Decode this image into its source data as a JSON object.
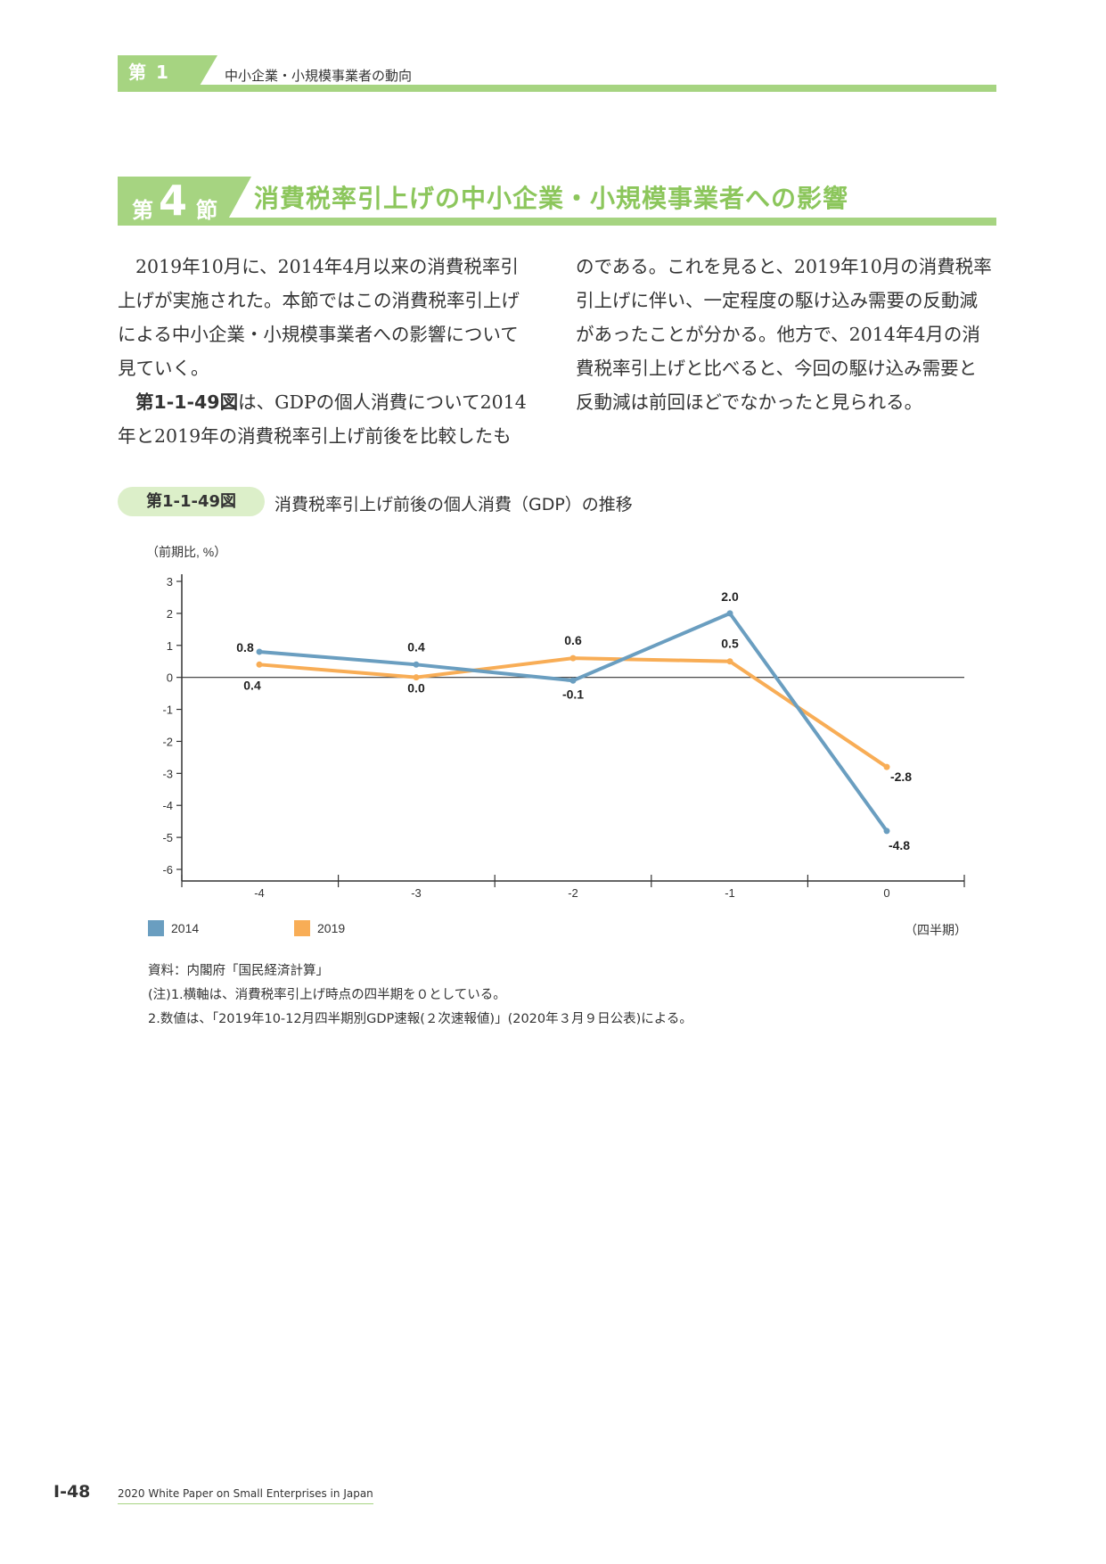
{
  "chapter": {
    "label": "第 1 章",
    "title": "中小企業・小規模事業者の動向"
  },
  "section": {
    "prefix": "第",
    "number": "4",
    "suffix": "節",
    "title": "消費税率引上げの中小企業・小規模事業者への影響"
  },
  "body": {
    "left_p1": "2019年10月に、2014年4月以来の消費税率引上げが実施された。本節ではこの消費税率引上げによる中小企業・小規模事業者への影響について見ていく。",
    "left_p2_ref": "第1-1-49図",
    "left_p2_rest": "は、GDPの個人消費について2014年と2019年の消費税率引上げ前後を比較したも",
    "right_p1": "のである。これを見ると、2019年10月の消費税率引上げに伴い、一定程度の駆け込み需要の反動減があったことが分かる。他方で、2014年4月の消費税率引上げと比べると、今回の駆け込み需要と反動減は前回ほどでなかったと見られる。"
  },
  "figure": {
    "number": "第1-1-49図",
    "title": "消費税率引上げ前後の個人消費（GDP）の推移"
  },
  "chart_data": {
    "type": "line",
    "ylabel": "（前期比, %）",
    "xlabel": "（四半期）",
    "x": [
      -4,
      -3,
      -2,
      -1,
      0
    ],
    "x_tick_labels": [
      "-4",
      "-3",
      "-2",
      "-1",
      "0"
    ],
    "ylim": [
      -6,
      3
    ],
    "y_ticks": [
      3,
      2,
      1,
      0,
      -1,
      -2,
      -3,
      -4,
      -5,
      -6
    ],
    "series": [
      {
        "name": "2014",
        "color": "#6a9ec0",
        "values": [
          0.8,
          0.4,
          -0.1,
          2.0,
          -4.8
        ],
        "labels": [
          "0.8",
          "0.4",
          "-0.1",
          "2.0",
          "-4.8"
        ]
      },
      {
        "name": "2019",
        "color": "#f8ad56",
        "values": [
          0.4,
          0.0,
          0.6,
          0.5,
          -2.8
        ],
        "labels": [
          "0.4",
          "0.0",
          "0.6",
          "0.5",
          "-2.8"
        ]
      }
    ],
    "legend_position": "bottom-left",
    "grid": false
  },
  "notes": {
    "source": "資料：内閣府「国民経済計算」",
    "note1": "(注)1.横軸は、消費税率引上げ時点の四半期を０としている。",
    "note2": "2.数値は、「2019年10-12月四半期別GDP速報(２次速報値)」(2020年３月９日公表)による。"
  },
  "footer": {
    "page": "I-48",
    "text": "2020 White Paper on Small Enterprises in Japan"
  }
}
